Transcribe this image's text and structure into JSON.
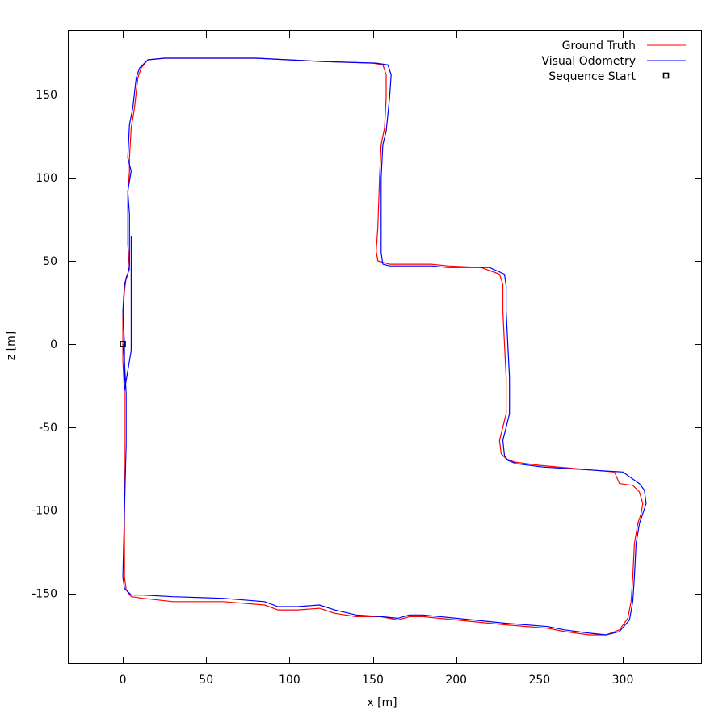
{
  "chart_data": {
    "type": "line",
    "title": "",
    "xlabel": "x [m]",
    "ylabel": "z [m]",
    "xlim": [
      -32.5,
      347.5
    ],
    "ylim": [
      -192.5,
      188.5
    ],
    "grid": false,
    "legend_placement": "top-right",
    "x_ticks": [
      0,
      50,
      100,
      150,
      200,
      250,
      300
    ],
    "y_ticks": [
      -150,
      -100,
      -50,
      0,
      50,
      100,
      150
    ],
    "x_tick_labels": [
      "0",
      "50",
      "100",
      "150",
      "200",
      "250",
      "300"
    ],
    "y_tick_labels": [
      "-150",
      "-100",
      "-50",
      "0",
      "50",
      "100",
      "150"
    ],
    "series": [
      {
        "name": "Ground Truth",
        "color": "#ff0000",
        "points": [
          [
            0,
            0
          ],
          [
            0,
            -10
          ],
          [
            1,
            -30
          ],
          [
            1,
            -60
          ],
          [
            1,
            -100
          ],
          [
            1,
            -140
          ],
          [
            2,
            -148
          ],
          [
            5,
            -152
          ],
          [
            12,
            -153
          ],
          [
            30,
            -155
          ],
          [
            60,
            -155
          ],
          [
            85,
            -157
          ],
          [
            93,
            -160
          ],
          [
            105,
            -160
          ],
          [
            118,
            -159
          ],
          [
            127,
            -162
          ],
          [
            140,
            -164
          ],
          [
            155,
            -164
          ],
          [
            165,
            -166
          ],
          [
            172,
            -164
          ],
          [
            180,
            -164
          ],
          [
            200,
            -166
          ],
          [
            230,
            -169
          ],
          [
            255,
            -171
          ],
          [
            265,
            -173
          ],
          [
            280,
            -175
          ],
          [
            290,
            -175
          ],
          [
            298,
            -172
          ],
          [
            303,
            -165
          ],
          [
            305,
            -155
          ],
          [
            306,
            -140
          ],
          [
            307,
            -120
          ],
          [
            309,
            -108
          ],
          [
            311,
            -102
          ],
          [
            312,
            -96
          ],
          [
            310,
            -89
          ],
          [
            306,
            -85
          ],
          [
            298,
            -84
          ],
          [
            295,
            -77
          ],
          [
            250,
            -73
          ],
          [
            235,
            -71
          ],
          [
            230,
            -69
          ],
          [
            227,
            -66
          ],
          [
            226,
            -58
          ],
          [
            228,
            -50
          ],
          [
            230,
            -42
          ],
          [
            230,
            -20
          ],
          [
            229,
            0
          ],
          [
            228,
            20
          ],
          [
            228,
            36
          ],
          [
            226,
            42
          ],
          [
            215,
            46
          ],
          [
            195,
            47
          ],
          [
            185,
            48
          ],
          [
            160,
            48
          ],
          [
            153,
            50
          ],
          [
            152,
            56
          ],
          [
            153,
            70
          ],
          [
            154,
            100
          ],
          [
            155,
            120
          ],
          [
            157,
            130
          ],
          [
            158,
            148
          ],
          [
            158,
            162
          ],
          [
            156,
            168
          ],
          [
            150,
            169
          ],
          [
            120,
            170
          ],
          [
            80,
            172
          ],
          [
            50,
            172
          ],
          [
            25,
            172
          ],
          [
            15,
            171
          ],
          [
            11,
            166
          ],
          [
            9,
            160
          ],
          [
            7,
            142
          ],
          [
            5,
            130
          ],
          [
            4,
            112
          ],
          [
            4,
            104
          ],
          [
            3,
            90
          ],
          [
            3,
            75
          ],
          [
            3,
            60
          ],
          [
            4,
            45
          ],
          [
            2,
            40
          ],
          [
            1,
            32
          ],
          [
            0,
            18
          ],
          [
            0,
            0
          ]
        ]
      },
      {
        "name": "Visual Odometry",
        "color": "#0000ff",
        "points": [
          [
            0,
            0
          ],
          [
            1,
            -10
          ],
          [
            2,
            -30
          ],
          [
            2,
            -60
          ],
          [
            1,
            -100
          ],
          [
            0,
            -140
          ],
          [
            1,
            -147
          ],
          [
            5,
            -151
          ],
          [
            12,
            -151
          ],
          [
            30,
            -152
          ],
          [
            60,
            -153
          ],
          [
            85,
            -155
          ],
          [
            93,
            -158
          ],
          [
            105,
            -158
          ],
          [
            118,
            -157
          ],
          [
            127,
            -160
          ],
          [
            140,
            -163
          ],
          [
            155,
            -164
          ],
          [
            165,
            -165
          ],
          [
            172,
            -163
          ],
          [
            180,
            -163
          ],
          [
            200,
            -165
          ],
          [
            230,
            -168
          ],
          [
            255,
            -170
          ],
          [
            265,
            -172
          ],
          [
            280,
            -174
          ],
          [
            290,
            -175
          ],
          [
            298,
            -173
          ],
          [
            304,
            -166
          ],
          [
            306,
            -155
          ],
          [
            307,
            -140
          ],
          [
            308,
            -120
          ],
          [
            310,
            -108
          ],
          [
            312,
            -102
          ],
          [
            314,
            -96
          ],
          [
            313,
            -88
          ],
          [
            310,
            -84
          ],
          [
            300,
            -77
          ],
          [
            252,
            -74
          ],
          [
            236,
            -72
          ],
          [
            231,
            -70
          ],
          [
            229,
            -67
          ],
          [
            228,
            -58
          ],
          [
            230,
            -50
          ],
          [
            232,
            -42
          ],
          [
            232,
            -20
          ],
          [
            231,
            0
          ],
          [
            230,
            20
          ],
          [
            230,
            35
          ],
          [
            229,
            42
          ],
          [
            220,
            46
          ],
          [
            195,
            46
          ],
          [
            185,
            47
          ],
          [
            160,
            47
          ],
          [
            156,
            48
          ],
          [
            155,
            55
          ],
          [
            155,
            70
          ],
          [
            155,
            100
          ],
          [
            156,
            120
          ],
          [
            158,
            128
          ],
          [
            160,
            148
          ],
          [
            161,
            162
          ],
          [
            159,
            168
          ],
          [
            152,
            169
          ],
          [
            120,
            170
          ],
          [
            80,
            172
          ],
          [
            50,
            172
          ],
          [
            25,
            172
          ],
          [
            15,
            171
          ],
          [
            10,
            166
          ],
          [
            8,
            160
          ],
          [
            6,
            142
          ],
          [
            4,
            132
          ],
          [
            3,
            112
          ],
          [
            5,
            104
          ],
          [
            3,
            92
          ],
          [
            4,
            78
          ],
          [
            4,
            60
          ],
          [
            4,
            47
          ],
          [
            3,
            42
          ],
          [
            1,
            36
          ],
          [
            0,
            20
          ],
          [
            1,
            0
          ],
          [
            1,
            -12
          ],
          [
            1,
            -28
          ],
          [
            5,
            -4
          ],
          [
            5,
            50
          ],
          [
            5,
            65
          ]
        ]
      }
    ],
    "markers": [
      {
        "name": "Sequence Start",
        "x": 0,
        "z": 0,
        "shape": "square",
        "color": "#000000"
      }
    ]
  }
}
